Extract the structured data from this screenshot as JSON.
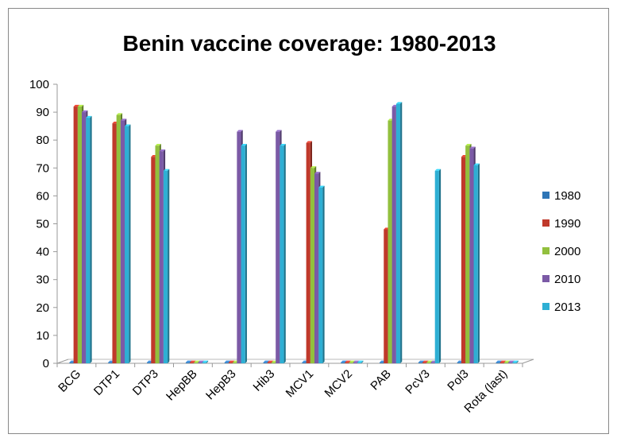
{
  "chart_data": {
    "type": "bar",
    "title": "Benin vaccine coverage: 1980-2013",
    "xlabel": "",
    "ylabel": "",
    "ylim": [
      0,
      100
    ],
    "y_ticks": [
      0,
      10,
      20,
      30,
      40,
      50,
      60,
      70,
      80,
      90,
      100
    ],
    "categories": [
      "BCG",
      "DTP1",
      "DTP3",
      "HepBB",
      "HepB3",
      "Hib3",
      "MCV1",
      "MCV2",
      "PAB",
      "PcV3",
      "Pol3",
      "Rota (last)"
    ],
    "legend_position": "right",
    "grid": false,
    "series": [
      {
        "name": "1980",
        "color": "#2E75B6",
        "values": [
          0,
          0,
          0,
          0,
          0,
          0,
          0,
          0,
          0,
          0,
          0,
          0
        ]
      },
      {
        "name": "1990",
        "color": "#C0392B",
        "values": [
          92,
          86,
          74,
          0,
          0,
          0,
          79,
          0,
          48,
          0,
          74,
          0
        ]
      },
      {
        "name": "2000",
        "color": "#92C03E",
        "values": [
          92,
          89,
          78,
          0,
          0,
          0,
          70,
          0,
          87,
          0,
          78,
          0
        ]
      },
      {
        "name": "2010",
        "color": "#7B5AA6",
        "values": [
          90,
          87,
          76,
          0,
          83,
          83,
          68,
          0,
          92,
          0,
          77,
          0
        ]
      },
      {
        "name": "2013",
        "color": "#2EAFD4",
        "values": [
          88,
          85,
          69,
          0,
          78,
          78,
          63,
          0,
          93,
          69,
          71,
          0
        ]
      }
    ]
  }
}
